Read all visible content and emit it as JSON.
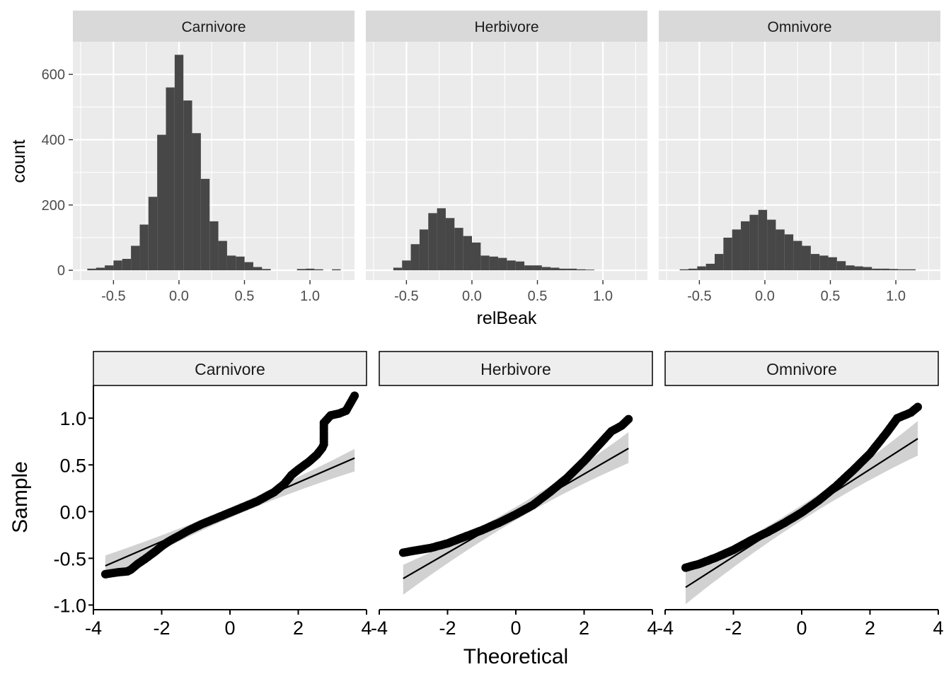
{
  "chart_data": [
    {
      "type": "bar",
      "chart": "histogram",
      "theme": "gray",
      "xlabel": "relBeak",
      "ylabel": "count",
      "xlim": [
        -0.81,
        1.34
      ],
      "ylim": [
        -30,
        700
      ],
      "x_ticks": [
        -0.5,
        0.0,
        0.5,
        1.0
      ],
      "x_tick_labels": [
        "-0.5",
        "0.0",
        "0.5",
        "1.0"
      ],
      "y_ticks": [
        0,
        200,
        400,
        600
      ],
      "y_tick_labels": [
        "0",
        "200",
        "400",
        "600"
      ],
      "bin_width": 0.0667,
      "panels": [
        {
          "label": "Carnivore",
          "bin_start": -0.7,
          "counts": [
            5,
            8,
            15,
            30,
            35,
            75,
            140,
            225,
            415,
            560,
            660,
            520,
            420,
            280,
            150,
            90,
            45,
            42,
            25,
            10,
            4,
            0,
            0,
            0,
            4,
            5,
            3,
            0,
            3
          ]
        },
        {
          "label": "Herbivore",
          "bin_start": -0.6,
          "counts": [
            8,
            30,
            80,
            125,
            175,
            190,
            160,
            130,
            105,
            85,
            45,
            42,
            38,
            30,
            27,
            15,
            15,
            10,
            8,
            5,
            5,
            3,
            2
          ]
        },
        {
          "label": "Omnivore",
          "bin_start": -0.65,
          "counts": [
            3,
            5,
            12,
            20,
            50,
            100,
            125,
            150,
            170,
            185,
            155,
            125,
            110,
            90,
            75,
            50,
            45,
            40,
            28,
            15,
            12,
            10,
            5,
            5,
            4,
            3,
            3
          ]
        }
      ]
    },
    {
      "type": "scatter",
      "chart": "qq-plot",
      "theme": "classic",
      "xlabel": "Theoretical",
      "ylabel": "Sample",
      "xlim": [
        -4,
        4
      ],
      "ylim": [
        -1.05,
        1.35
      ],
      "x_ticks": [
        -4,
        -2,
        0,
        2,
        4
      ],
      "x_tick_labels": [
        "-4",
        "-2",
        "0",
        "2",
        "4"
      ],
      "y_ticks": [
        -1.0,
        -0.5,
        0.0,
        0.5,
        1.0
      ],
      "y_tick_labels": [
        "-1.0",
        "-0.5",
        "0.0",
        "0.5",
        "1.0"
      ],
      "panels": [
        {
          "label": "Carnivore",
          "theoretical_range": [
            -3.65,
            3.65
          ],
          "quantiles": [
            [
              -3.65,
              -0.67
            ],
            [
              -3.3,
              -0.65
            ],
            [
              -3.0,
              -0.64
            ],
            [
              -2.9,
              -0.62
            ],
            [
              -2.7,
              -0.56
            ],
            [
              -2.5,
              -0.51
            ],
            [
              -2.2,
              -0.43
            ],
            [
              -2.0,
              -0.37
            ],
            [
              -1.8,
              -0.32
            ],
            [
              -1.5,
              -0.26
            ],
            [
              -1.2,
              -0.2
            ],
            [
              -0.8,
              -0.13
            ],
            [
              -0.4,
              -0.07
            ],
            [
              0.0,
              -0.01
            ],
            [
              0.4,
              0.05
            ],
            [
              0.8,
              0.11
            ],
            [
              1.0,
              0.15
            ],
            [
              1.3,
              0.21
            ],
            [
              1.6,
              0.3
            ],
            [
              1.8,
              0.39
            ],
            [
              2.0,
              0.45
            ],
            [
              2.3,
              0.53
            ],
            [
              2.55,
              0.61
            ],
            [
              2.7,
              0.68
            ],
            [
              2.75,
              0.72
            ],
            [
              2.75,
              0.95
            ],
            [
              2.95,
              1.03
            ],
            [
              3.2,
              1.05
            ],
            [
              3.4,
              1.08
            ],
            [
              3.65,
              1.24
            ]
          ],
          "line": {
            "slope": 0.158,
            "intercept": -0.004
          },
          "band": {
            "lower_at_min": -0.73,
            "upper_at_min": -0.47,
            "lower_at_max": 0.43,
            "upper_at_max": 0.67
          }
        },
        {
          "label": "Herbivore",
          "theoretical_range": [
            -3.3,
            3.3
          ],
          "quantiles": [
            [
              -3.3,
              -0.44
            ],
            [
              -3.0,
              -0.42
            ],
            [
              -2.5,
              -0.39
            ],
            [
              -2.0,
              -0.34
            ],
            [
              -1.5,
              -0.27
            ],
            [
              -1.0,
              -0.2
            ],
            [
              -0.5,
              -0.12
            ],
            [
              0.0,
              -0.03
            ],
            [
              0.5,
              0.07
            ],
            [
              1.0,
              0.21
            ],
            [
              1.5,
              0.36
            ],
            [
              2.0,
              0.54
            ],
            [
              2.5,
              0.74
            ],
            [
              2.8,
              0.86
            ],
            [
              3.1,
              0.92
            ],
            [
              3.3,
              0.99
            ]
          ],
          "line": {
            "slope": 0.211,
            "intercept": -0.02
          },
          "band": {
            "lower_at_min": -0.89,
            "upper_at_min": -0.57,
            "lower_at_max": 0.52,
            "upper_at_max": 0.85
          }
        },
        {
          "label": "Omnivore",
          "theoretical_range": [
            -3.4,
            3.4
          ],
          "quantiles": [
            [
              -3.4,
              -0.6
            ],
            [
              -3.0,
              -0.56
            ],
            [
              -2.5,
              -0.49
            ],
            [
              -2.0,
              -0.41
            ],
            [
              -1.5,
              -0.31
            ],
            [
              -1.0,
              -0.22
            ],
            [
              -0.5,
              -0.12
            ],
            [
              0.0,
              -0.01
            ],
            [
              0.5,
              0.12
            ],
            [
              1.0,
              0.27
            ],
            [
              1.5,
              0.44
            ],
            [
              2.0,
              0.62
            ],
            [
              2.5,
              0.85
            ],
            [
              2.8,
              1.0
            ],
            [
              3.2,
              1.06
            ],
            [
              3.4,
              1.12
            ]
          ],
          "line": {
            "slope": 0.234,
            "intercept": -0.015
          },
          "band": {
            "lower_at_min": -0.99,
            "upper_at_min": -0.62,
            "lower_at_max": 0.6,
            "upper_at_max": 0.97
          }
        }
      ]
    }
  ]
}
